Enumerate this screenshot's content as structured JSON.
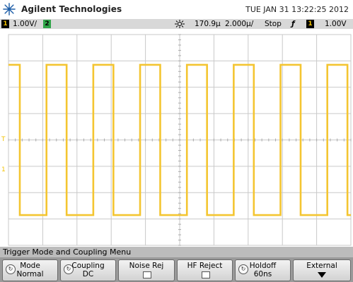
{
  "header": {
    "brand": "Agilent Technologies",
    "datetime": "TUE JAN 31 13:22:25 2012",
    "logo_icon": "agilent-spark-logo"
  },
  "status": {
    "ch1_label": "1",
    "ch1_scale": "1.00V/",
    "ch2_label": "2",
    "trigger_icon": "trigger-point-icon",
    "time_offset": "170.9µ",
    "time_scale": "2.000µ/",
    "run_state": "Stop",
    "edge_icon": "ƒ",
    "trig_source": "1",
    "trig_level": "1.00V"
  },
  "colors": {
    "trace": "#f4c531",
    "grid": "#c9c9c9",
    "ch1": "#f2c200",
    "ch2": "#2fa548"
  },
  "waveform": {
    "type": "square",
    "channel": "1",
    "high_level_div": 2.85,
    "low_level_div": -2.85
  },
  "menu": {
    "title": "Trigger Mode and Coupling Menu",
    "keys": [
      {
        "line1": "Mode",
        "line2": "Normal",
        "icon": "knob-icon"
      },
      {
        "line1": "Coupling",
        "line2": "DC",
        "icon": "knob-icon"
      },
      {
        "line1": "Noise Rej",
        "line2": "",
        "icon": "checkbox-icon"
      },
      {
        "line1": "HF Reject",
        "line2": "",
        "icon": "checkbox-icon"
      },
      {
        "line1": "Holdoff",
        "line2": "60ns",
        "icon": "knob-icon"
      },
      {
        "line1": "External",
        "line2": "",
        "icon": "down-arrow-icon"
      }
    ]
  }
}
